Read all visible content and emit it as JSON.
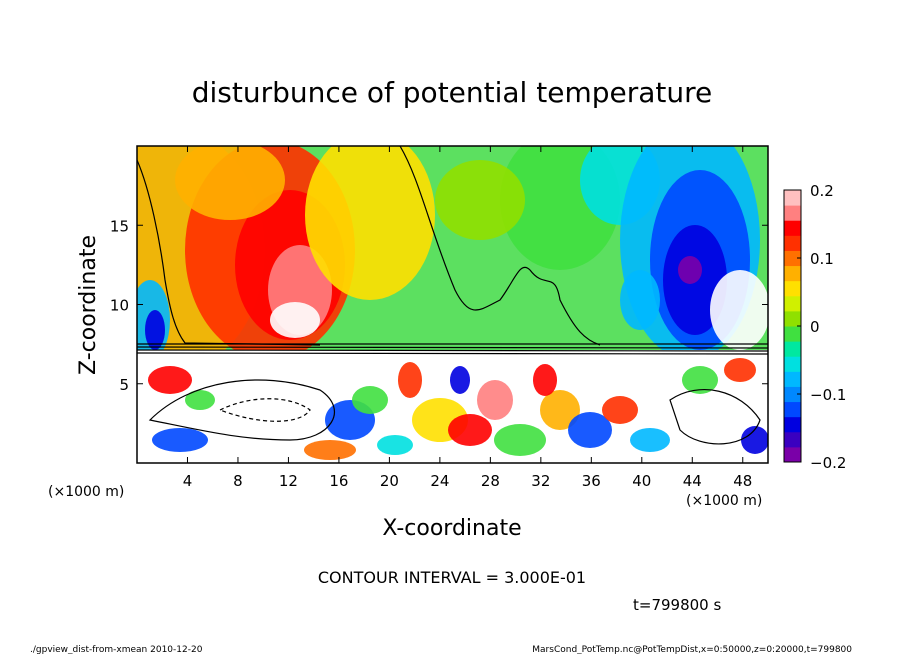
{
  "chart_data": {
    "type": "heatmap",
    "title": "disturbunce of potential temperature",
    "xlabel": "X-coordinate",
    "ylabel": "Z-coordinate",
    "x_unit_left": "(×1000 m)",
    "x_unit_right": "(×1000 m)",
    "xlim": [
      0,
      50
    ],
    "ylim": [
      0,
      20
    ],
    "x_ticks": [
      4,
      8,
      12,
      16,
      20,
      24,
      28,
      32,
      36,
      40,
      44,
      48
    ],
    "x_tick_labels": [
      "4",
      "8",
      "12",
      "16",
      "20",
      "24",
      "28",
      "32",
      "36",
      "40",
      "44",
      "48"
    ],
    "y_ticks": [
      5,
      10,
      15
    ],
    "y_tick_labels": [
      "5",
      "10",
      "15"
    ],
    "colorbar": {
      "range": [
        -0.2,
        0.2
      ],
      "ticks": [
        -0.2,
        -0.1,
        0,
        0.1,
        0.2
      ],
      "tick_labels": [
        "−0.2",
        "−0.1",
        "0",
        "0.1",
        "0.2"
      ],
      "colors": [
        "#7a00a8",
        "#3a00c0",
        "#0000e0",
        "#0048ff",
        "#0088ff",
        "#00b8ff",
        "#00e0e0",
        "#00e8a0",
        "#40e040",
        "#90e000",
        "#d0f000",
        "#ffe000",
        "#ffb000",
        "#ff7000",
        "#ff3000",
        "#ff0000",
        "#ff8080",
        "#ffc0c0"
      ]
    },
    "contour_interval_text": "CONTOUR INTERVAL = 3.000E-01",
    "time_text": "t=799800 s",
    "footer_left": "./gpview_dist-from-xmean  2010-12-20",
    "footer_right": "MarsCond_PotTemp.nc@PotTempDist,x=0:50000,z=0:20000,t=799800"
  }
}
